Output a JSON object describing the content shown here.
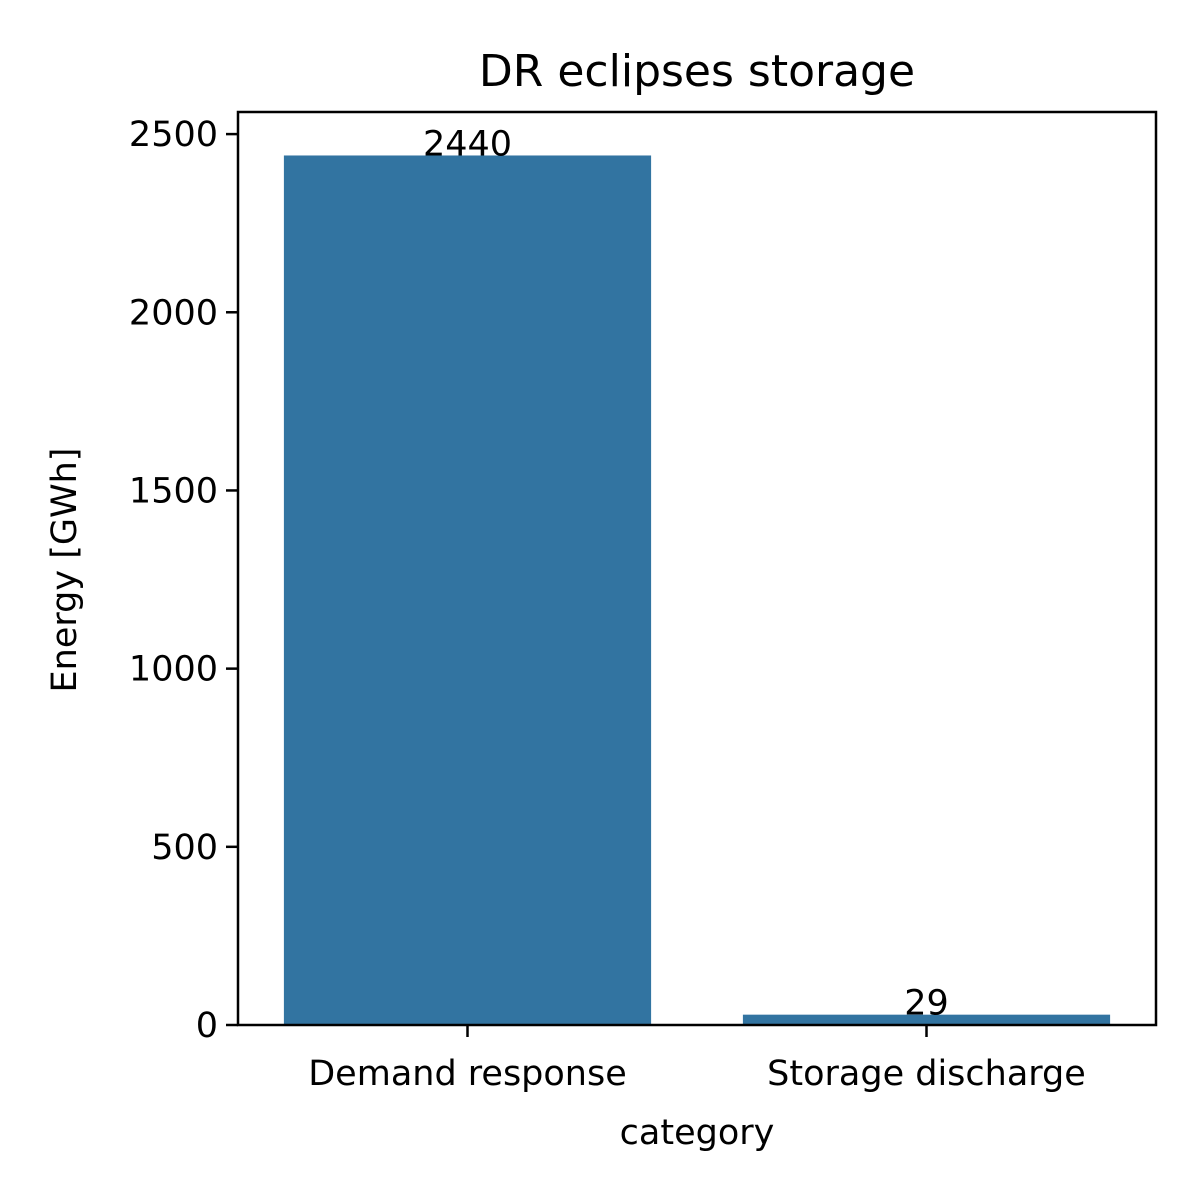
{
  "chart_data": {
    "type": "bar",
    "title": "DR eclipses storage",
    "xlabel": "category",
    "ylabel": "Energy [GWh]",
    "categories": [
      "Demand response",
      "Storage discharge"
    ],
    "values": [
      2440,
      29
    ],
    "data_labels": [
      "2440",
      "29"
    ],
    "yticks": [
      0,
      500,
      1000,
      1500,
      2000,
      2500
    ],
    "ylim": [
      0,
      2562
    ],
    "grid": false,
    "legend": "none",
    "bar_color": "#3274a1"
  }
}
